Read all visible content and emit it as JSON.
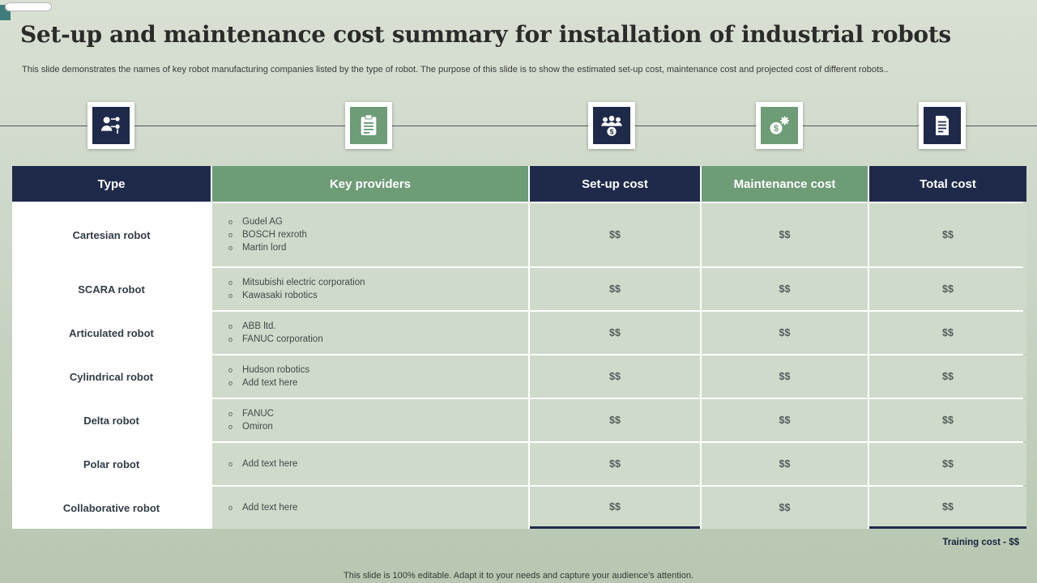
{
  "slide": {
    "title": "Set-up and maintenance cost summary for installation of industrial robots",
    "subtitle": "This slide demonstrates the names of key robot manufacturing companies listed by the type of robot. The purpose of this slide is to show the estimated set-up cost, maintenance cost and projected cost of different robots..",
    "footer": "This slide is 100% editable. Adapt it to your needs and capture your audience's attention.",
    "training_note": "Training cost - $$"
  },
  "colors": {
    "navy": "#1f2a4b",
    "green": "#6d9c76",
    "background": "#cbd6c6",
    "cell_tint": "#cfdaca"
  },
  "icons": [
    {
      "name": "person-flow-icon",
      "style": "navy"
    },
    {
      "name": "clipboard-icon",
      "style": "green"
    },
    {
      "name": "people-dollar-icon",
      "style": "navy"
    },
    {
      "name": "money-gear-icon",
      "style": "green"
    },
    {
      "name": "document-icon",
      "style": "navy"
    }
  ],
  "table": {
    "headers": [
      {
        "label": "Type",
        "style": "navy"
      },
      {
        "label": "Key providers",
        "style": "green"
      },
      {
        "label": "Set-up cost",
        "style": "navy"
      },
      {
        "label": "Maintenance cost",
        "style": "green"
      },
      {
        "label": "Total cost",
        "style": "navy"
      }
    ],
    "rows": [
      {
        "type": "Cartesian robot",
        "providers": [
          "Gudel AG",
          "BOSCH rexroth",
          "Martin lord"
        ],
        "setup": "$$",
        "maintenance": "$$",
        "total": "$$"
      },
      {
        "type": "SCARA robot",
        "providers": [
          "Mitsubishi electric corporation",
          "Kawasaki robotics"
        ],
        "setup": "$$",
        "maintenance": "$$",
        "total": "$$"
      },
      {
        "type": "Articulated robot",
        "providers": [
          "ABB ltd.",
          "FANUC corporation"
        ],
        "setup": "$$",
        "maintenance": "$$",
        "total": "$$"
      },
      {
        "type": "Cylindrical robot",
        "providers": [
          "Hudson robotics",
          "Add text here"
        ],
        "setup": "$$",
        "maintenance": "$$",
        "total": "$$"
      },
      {
        "type": "Delta robot",
        "providers": [
          "FANUC",
          "Omiron"
        ],
        "setup": "$$",
        "maintenance": "$$",
        "total": "$$"
      },
      {
        "type": "Polar robot",
        "providers": [
          "Add text here"
        ],
        "setup": "$$",
        "maintenance": "$$",
        "total": "$$"
      },
      {
        "type": "Collaborative robot",
        "providers": [
          "Add text here"
        ],
        "setup": "$$",
        "maintenance": "$$",
        "total": "$$"
      }
    ]
  }
}
